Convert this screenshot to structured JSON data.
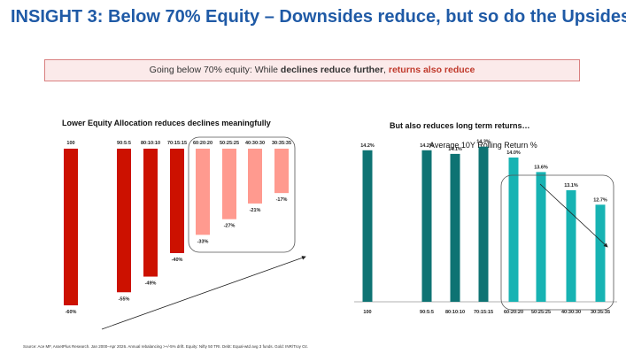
{
  "title": "INSIGHT 3: Below 70% Equity – Downsides reduce, but so do the Upsides",
  "banner": {
    "prefix": "Going below 70% equity: While ",
    "bold": "declines reduce further",
    "comma": ", ",
    "red": "returns also reduce"
  },
  "footnote": "Source: Ace MF, AssetPlus Research. Jan 2000–Apr 2026. Annual rebalancing >+/-5% drift. Equity: Nifty 50 TRI. Debt: Equal-wtd avg 3 funds. Gold: INR/Troy Oz.",
  "colors": {
    "dark_red": "#cc1100",
    "light_red": "#ff9a8f",
    "teal": "#0e7373",
    "light_teal": "#17b3b3",
    "title_blue": "#1f5aa6"
  },
  "chart_data": [
    {
      "type": "bar",
      "title": "Lower Equity Allocation reduces declines meaningfully",
      "categories": [
        "100",
        "90:5:5",
        "80:10:10",
        "70:15:15",
        "60:20:20",
        "50:25:25",
        "40:30:30",
        "30:35:35"
      ],
      "values": [
        -60,
        -55,
        -49,
        -40,
        -33,
        -27,
        -21,
        -17
      ],
      "labels": [
        "-60%",
        "-55%",
        "-49%",
        "-40%",
        "-33%",
        "-27%",
        "-21%",
        "-17%"
      ],
      "highlighted_from": "60:20:20",
      "colors": [
        "#cc1100",
        "#cc1100",
        "#cc1100",
        "#cc1100",
        "#ff9a8f",
        "#ff9a8f",
        "#ff9a8f",
        "#ff9a8f"
      ],
      "ylim": [
        -60,
        0
      ]
    },
    {
      "type": "bar",
      "title": "But also reduces long term returns…",
      "subtitle": "Average 10Y Rolling Return %",
      "categories": [
        "100",
        "90:5:5",
        "80:10:10",
        "70:15:15",
        "60:20:20",
        "50:25:25",
        "40:30:30",
        "30:35:35"
      ],
      "values": [
        14.2,
        14.2,
        14.1,
        14.3,
        14.0,
        13.6,
        13.1,
        12.7
      ],
      "labels": [
        "14.2%",
        "14.2%",
        "14.1%",
        "14.3%",
        "14.0%",
        "13.6%",
        "13.1%",
        "12.7%"
      ],
      "highlighted_from": "60:20:20",
      "colors": [
        "#0e7373",
        "#0e7373",
        "#0e7373",
        "#0e7373",
        "#17b3b3",
        "#17b3b3",
        "#17b3b3",
        "#17b3b3"
      ]
    }
  ]
}
